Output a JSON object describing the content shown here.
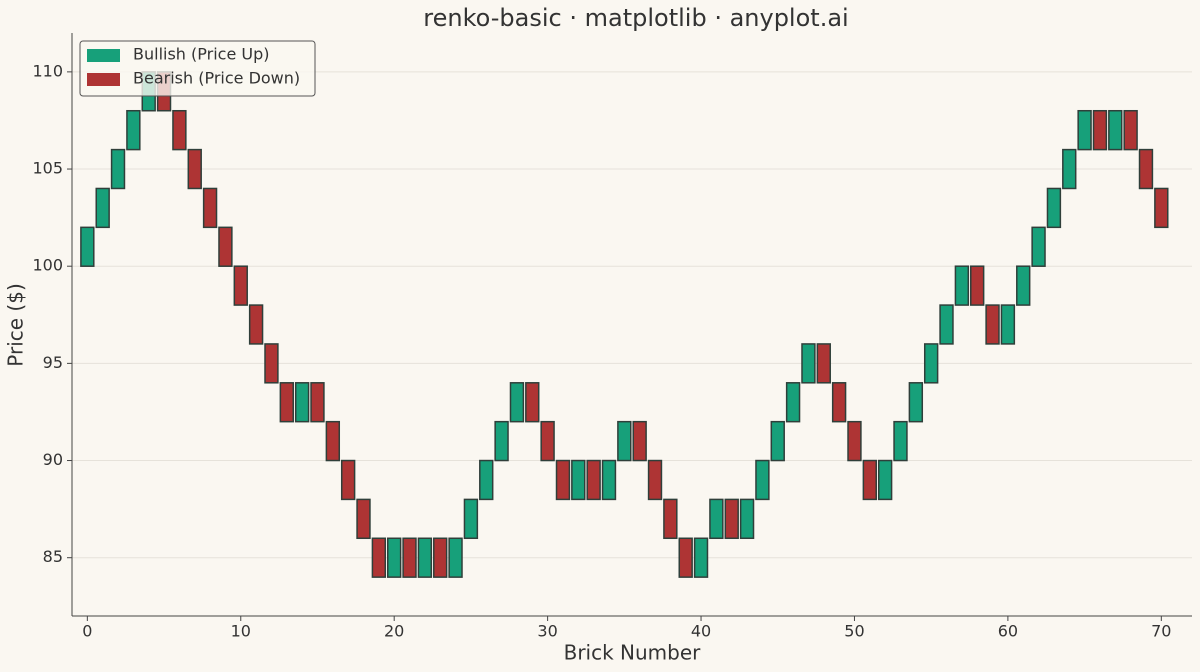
{
  "chart_data": {
    "type": "renko",
    "title": "renko-basic · matplotlib · anyplot.ai",
    "x_label": "Brick Number",
    "y_label": "Price ($)",
    "up": {
      "name": "Bullish (Price Up)",
      "color": "#17a07a"
    },
    "down": {
      "name": "Bearish (Price Down)",
      "color": "#ae3434"
    },
    "x": [
      0,
      1,
      2,
      3,
      4,
      5,
      6,
      7,
      8,
      9,
      10,
      11,
      12,
      13,
      14,
      15,
      16,
      17,
      18,
      19,
      20,
      21,
      22,
      23,
      24,
      25,
      26,
      27,
      28,
      29,
      30,
      31,
      32,
      33,
      34,
      35,
      36,
      37,
      38,
      39,
      40,
      41,
      42,
      43,
      44,
      45,
      46,
      47,
      48,
      49,
      50,
      51,
      52,
      53,
      54,
      55,
      56,
      57,
      58,
      59,
      60,
      61,
      62,
      63,
      64,
      65,
      66,
      67,
      68,
      69,
      70
    ],
    "open": [
      100,
      102,
      104,
      106,
      108,
      110,
      108,
      106,
      104,
      102,
      100,
      98,
      96,
      94,
      92,
      94,
      92,
      90,
      88,
      86,
      84,
      86,
      84,
      86,
      84,
      86,
      88,
      90,
      92,
      94,
      92,
      90,
      88,
      90,
      88,
      90,
      92,
      90,
      88,
      86,
      84,
      86,
      88,
      86,
      88,
      90,
      92,
      94,
      96,
      94,
      92,
      90,
      88,
      90,
      92,
      94,
      96,
      98,
      100,
      98,
      96,
      98,
      100,
      102,
      104,
      106,
      108,
      106,
      108,
      106,
      104
    ],
    "close": [
      102,
      104,
      106,
      108,
      110,
      108,
      106,
      104,
      102,
      100,
      98,
      96,
      94,
      92,
      94,
      92,
      90,
      88,
      86,
      84,
      86,
      84,
      86,
      84,
      86,
      88,
      90,
      92,
      94,
      92,
      90,
      88,
      90,
      88,
      90,
      92,
      90,
      88,
      86,
      84,
      86,
      88,
      86,
      88,
      90,
      92,
      94,
      96,
      94,
      92,
      90,
      88,
      90,
      92,
      94,
      96,
      98,
      100,
      98,
      96,
      98,
      100,
      102,
      104,
      106,
      108,
      106,
      108,
      106,
      104,
      102
    ],
    "xlim": [
      -1,
      72
    ],
    "ylim": [
      82,
      112
    ],
    "xticks": [
      0,
      10,
      20,
      30,
      40,
      50,
      60,
      70
    ],
    "yticks": [
      85,
      90,
      95,
      100,
      105,
      110
    ],
    "grid": true,
    "legend_position": "upper-left"
  }
}
